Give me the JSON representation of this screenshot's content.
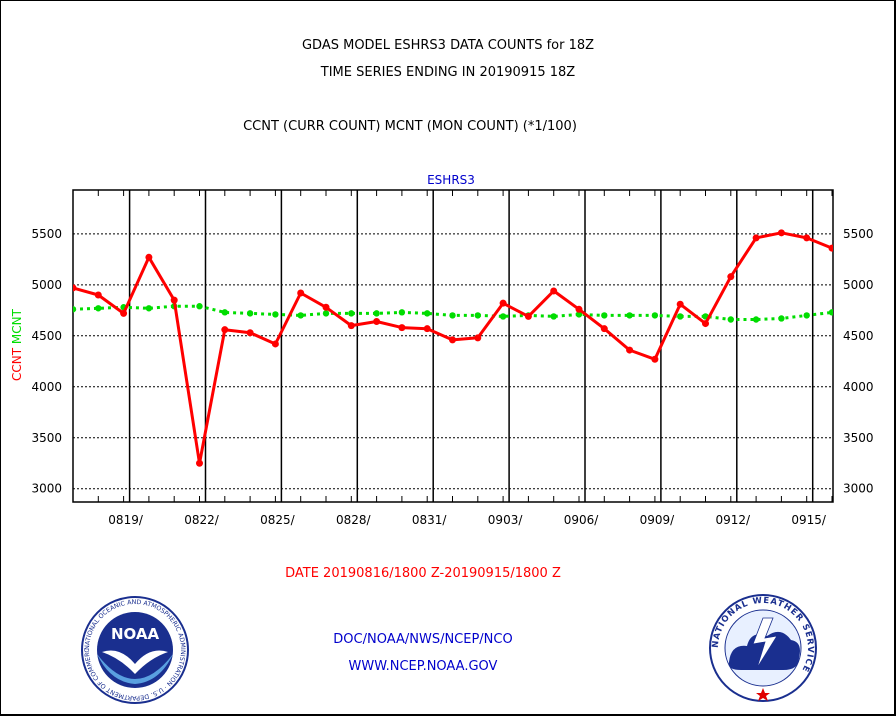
{
  "header": {
    "title_line1": "GDAS MODEL ESHRS3 DATA COUNTS for 18Z",
    "title_line2": "TIME SERIES ENDING IN 20190915 18Z",
    "subtitle": "CCNT (CURR COUNT) MCNT (MON COUNT) (*1/100)"
  },
  "footer": {
    "date_range": "DATE 20190816/1800 Z-20190915/1800 Z",
    "org_line": "DOC/NOAA/NWS/NCEP/NCO",
    "url_line": "WWW.NCEP.NOAA.GOV"
  },
  "logos": {
    "noaa": {
      "label": "NOAA",
      "ring_text": "NATIONAL OCEANIC AND ATMOSPHERIC ADMINISTRATION · U.S. DEPARTMENT OF COMMERCE"
    },
    "nws": {
      "ring_text": "NATIONAL WEATHER SERVICE"
    }
  },
  "colors": {
    "ccnt": "#ff0000",
    "mcnt": "#00dd00",
    "panel_label": "#0000cc",
    "grid": "#000000"
  },
  "chart_data": {
    "type": "line",
    "title": "ESHRS3",
    "ylabel_parts": [
      {
        "text": "CCNT",
        "color": "#ff0000"
      },
      {
        "text": "MCNT",
        "color": "#00dd00"
      }
    ],
    "ylim": [
      2870,
      5930
    ],
    "xlim": [
      0,
      30
    ],
    "y_ticks": [
      3000,
      3500,
      4000,
      4500,
      5000,
      5500
    ],
    "x_tick_labels": [
      {
        "x": 2,
        "label": "0819/"
      },
      {
        "x": 5,
        "label": "0822/"
      },
      {
        "x": 8,
        "label": "0825/"
      },
      {
        "x": 11,
        "label": "0828/"
      },
      {
        "x": 14,
        "label": "0831/"
      },
      {
        "x": 17,
        "label": "0903/"
      },
      {
        "x": 20,
        "label": "0906/"
      },
      {
        "x": 23,
        "label": "0909/"
      },
      {
        "x": 26,
        "label": "0912/"
      },
      {
        "x": 29,
        "label": "0915/"
      }
    ],
    "grid": true,
    "series": [
      {
        "name": "CCNT",
        "color": "#ff0000",
        "style": "solid",
        "x": [
          0,
          1,
          2,
          3,
          4,
          5,
          6,
          7,
          8,
          9,
          10,
          11,
          12,
          13,
          14,
          15,
          16,
          17,
          18,
          19,
          20,
          21,
          22,
          23,
          24,
          25,
          26,
          27,
          28,
          29,
          30
        ],
        "y": [
          4970,
          4900,
          4720,
          5270,
          4850,
          3250,
          4560,
          4530,
          4420,
          4920,
          4780,
          4600,
          4640,
          4580,
          4570,
          4460,
          4480,
          4820,
          4690,
          4940,
          4760,
          4570,
          4360,
          4270,
          4810,
          4620,
          5080,
          5460,
          5510,
          5460,
          5360
        ]
      },
      {
        "name": "MCNT",
        "color": "#00dd00",
        "style": "dashed",
        "x": [
          0,
          1,
          2,
          3,
          4,
          5,
          6,
          7,
          8,
          9,
          10,
          11,
          12,
          13,
          14,
          15,
          16,
          17,
          18,
          19,
          20,
          21,
          22,
          23,
          24,
          25,
          26,
          27,
          28,
          29,
          30
        ],
        "y": [
          4760,
          4770,
          4780,
          4770,
          4790,
          4790,
          4730,
          4720,
          4710,
          4700,
          4720,
          4720,
          4720,
          4730,
          4720,
          4700,
          4700,
          4690,
          4700,
          4690,
          4710,
          4700,
          4700,
          4700,
          4690,
          4690,
          4660,
          4660,
          4670,
          4700,
          4730
        ]
      }
    ]
  }
}
